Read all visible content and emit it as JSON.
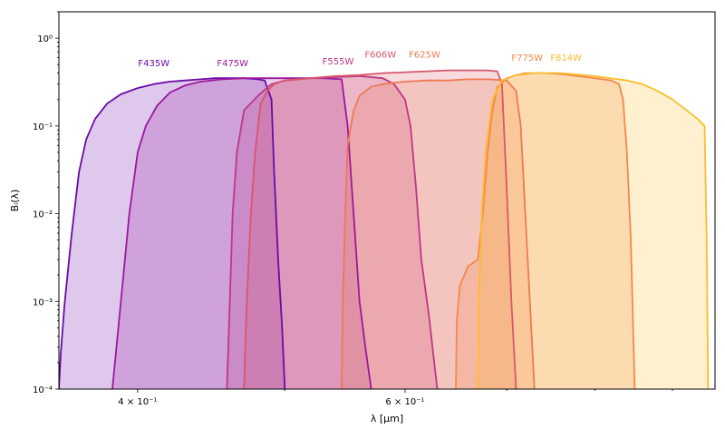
{
  "chart_data": {
    "type": "area",
    "xlabel": "λ [μm]",
    "ylabel": "Bᵢ(λ)",
    "xscale": "log",
    "yscale": "log",
    "xlim": [
      0.355,
      0.96
    ],
    "ylim": [
      0.0001,
      2.0
    ],
    "xtick_labels": [
      {
        "x": 0.4,
        "label": "4 × 10⁻¹"
      },
      {
        "x": 0.6,
        "label": "6 × 10⁻¹"
      }
    ],
    "xminor_ticks": [
      0.5,
      0.7,
      0.8,
      0.9
    ],
    "ytick_labels": [
      {
        "y": 1.0,
        "label": "10⁰"
      },
      {
        "y": 0.1,
        "label": "10⁻¹"
      },
      {
        "y": 0.01,
        "label": "10⁻²"
      },
      {
        "y": 0.001,
        "label": "10⁻³"
      },
      {
        "y": 0.0001,
        "label": "10⁻⁴"
      }
    ],
    "grid": false,
    "series": [
      {
        "name": "F435W",
        "color": "#6a0aa8",
        "label_x": 0.41,
        "label_y": 0.48,
        "points": [
          [
            0.355,
            0.0001
          ],
          [
            0.356,
            0.00025
          ],
          [
            0.358,
            0.0009
          ],
          [
            0.362,
            0.006
          ],
          [
            0.366,
            0.03
          ],
          [
            0.37,
            0.07
          ],
          [
            0.375,
            0.12
          ],
          [
            0.382,
            0.18
          ],
          [
            0.39,
            0.23
          ],
          [
            0.4,
            0.27
          ],
          [
            0.41,
            0.3
          ],
          [
            0.42,
            0.32
          ],
          [
            0.43,
            0.33
          ],
          [
            0.44,
            0.34
          ],
          [
            0.45,
            0.35
          ],
          [
            0.46,
            0.35
          ],
          [
            0.47,
            0.35
          ],
          [
            0.48,
            0.34
          ],
          [
            0.485,
            0.33
          ],
          [
            0.49,
            0.2
          ],
          [
            0.492,
            0.03
          ],
          [
            0.495,
            0.003
          ],
          [
            0.498,
            0.0005
          ],
          [
            0.5,
            0.0001
          ]
        ]
      },
      {
        "name": "F475W",
        "color": "#9c179e",
        "label_x": 0.462,
        "label_y": 0.48,
        "points": [
          [
            0.385,
            0.0001
          ],
          [
            0.39,
            0.001
          ],
          [
            0.395,
            0.01
          ],
          [
            0.4,
            0.05
          ],
          [
            0.405,
            0.1
          ],
          [
            0.412,
            0.17
          ],
          [
            0.42,
            0.24
          ],
          [
            0.43,
            0.29
          ],
          [
            0.44,
            0.32
          ],
          [
            0.455,
            0.34
          ],
          [
            0.47,
            0.35
          ],
          [
            0.49,
            0.35
          ],
          [
            0.51,
            0.35
          ],
          [
            0.53,
            0.35
          ],
          [
            0.545,
            0.34
          ],
          [
            0.55,
            0.1
          ],
          [
            0.555,
            0.01
          ],
          [
            0.56,
            0.001
          ],
          [
            0.565,
            0.0003
          ],
          [
            0.57,
            0.0001
          ]
        ]
      },
      {
        "name": "F555W",
        "color": "#bd3786",
        "label_x": 0.542,
        "label_y": 0.5,
        "points": [
          [
            0.458,
            0.0001
          ],
          [
            0.46,
            0.001
          ],
          [
            0.462,
            0.01
          ],
          [
            0.465,
            0.05
          ],
          [
            0.47,
            0.15
          ],
          [
            0.48,
            0.22
          ],
          [
            0.49,
            0.3
          ],
          [
            0.5,
            0.33
          ],
          [
            0.52,
            0.35
          ],
          [
            0.54,
            0.36
          ],
          [
            0.56,
            0.37
          ],
          [
            0.58,
            0.35
          ],
          [
            0.59,
            0.3
          ],
          [
            0.6,
            0.2
          ],
          [
            0.605,
            0.1
          ],
          [
            0.61,
            0.02
          ],
          [
            0.615,
            0.003
          ],
          [
            0.622,
            0.0007
          ],
          [
            0.63,
            0.0001
          ]
        ]
      },
      {
        "name": "F606W",
        "color": "#d8576b",
        "label_x": 0.578,
        "label_y": 0.6,
        "points": [
          [
            0.47,
            0.0001
          ],
          [
            0.472,
            0.001
          ],
          [
            0.475,
            0.01
          ],
          [
            0.478,
            0.05
          ],
          [
            0.482,
            0.18
          ],
          [
            0.487,
            0.25
          ],
          [
            0.492,
            0.3
          ],
          [
            0.5,
            0.33
          ],
          [
            0.52,
            0.35
          ],
          [
            0.54,
            0.37
          ],
          [
            0.56,
            0.38
          ],
          [
            0.58,
            0.4
          ],
          [
            0.6,
            0.41
          ],
          [
            0.62,
            0.42
          ],
          [
            0.64,
            0.43
          ],
          [
            0.66,
            0.43
          ],
          [
            0.68,
            0.43
          ],
          [
            0.69,
            0.42
          ],
          [
            0.695,
            0.3
          ],
          [
            0.7,
            0.02
          ],
          [
            0.705,
            0.001
          ],
          [
            0.71,
            0.0001
          ]
        ]
      },
      {
        "name": "F625W",
        "color": "#ed7953",
        "label_x": 0.618,
        "label_y": 0.6,
        "points": [
          [
            0.545,
            0.0001
          ],
          [
            0.546,
            0.001
          ],
          [
            0.548,
            0.01
          ],
          [
            0.55,
            0.06
          ],
          [
            0.555,
            0.15
          ],
          [
            0.56,
            0.22
          ],
          [
            0.57,
            0.28
          ],
          [
            0.58,
            0.3
          ],
          [
            0.6,
            0.32
          ],
          [
            0.62,
            0.33
          ],
          [
            0.64,
            0.33
          ],
          [
            0.66,
            0.34
          ],
          [
            0.68,
            0.34
          ],
          [
            0.7,
            0.33
          ],
          [
            0.71,
            0.25
          ],
          [
            0.715,
            0.1
          ],
          [
            0.72,
            0.01
          ],
          [
            0.725,
            0.001
          ],
          [
            0.73,
            0.0001
          ]
        ]
      },
      {
        "name": "F775W",
        "color": "#f48849",
        "label_x": 0.722,
        "label_y": 0.55,
        "points": [
          [
            0.648,
            0.0001
          ],
          [
            0.649,
            0.0006
          ],
          [
            0.652,
            0.0015
          ],
          [
            0.66,
            0.0025
          ],
          [
            0.67,
            0.003
          ],
          [
            0.675,
            0.01
          ],
          [
            0.68,
            0.05
          ],
          [
            0.685,
            0.15
          ],
          [
            0.69,
            0.28
          ],
          [
            0.7,
            0.35
          ],
          [
            0.71,
            0.38
          ],
          [
            0.72,
            0.4
          ],
          [
            0.74,
            0.4
          ],
          [
            0.76,
            0.39
          ],
          [
            0.78,
            0.37
          ],
          [
            0.8,
            0.35
          ],
          [
            0.82,
            0.33
          ],
          [
            0.83,
            0.3
          ],
          [
            0.835,
            0.2
          ],
          [
            0.84,
            0.05
          ],
          [
            0.845,
            0.005
          ],
          [
            0.85,
            0.0001
          ]
        ]
      },
      {
        "name": "F814W",
        "color": "#febc2a",
        "label_x": 0.766,
        "label_y": 0.55,
        "points": [
          [
            0.67,
            0.0001
          ],
          [
            0.671,
            0.001
          ],
          [
            0.674,
            0.01
          ],
          [
            0.678,
            0.05
          ],
          [
            0.685,
            0.2
          ],
          [
            0.695,
            0.33
          ],
          [
            0.71,
            0.38
          ],
          [
            0.73,
            0.4
          ],
          [
            0.76,
            0.4
          ],
          [
            0.8,
            0.37
          ],
          [
            0.84,
            0.33
          ],
          [
            0.86,
            0.3
          ],
          [
            0.88,
            0.25
          ],
          [
            0.9,
            0.2
          ],
          [
            0.92,
            0.15
          ],
          [
            0.935,
            0.12
          ],
          [
            0.945,
            0.1
          ],
          [
            0.948,
            0.005
          ],
          [
            0.95,
            0.0001
          ]
        ]
      }
    ]
  }
}
